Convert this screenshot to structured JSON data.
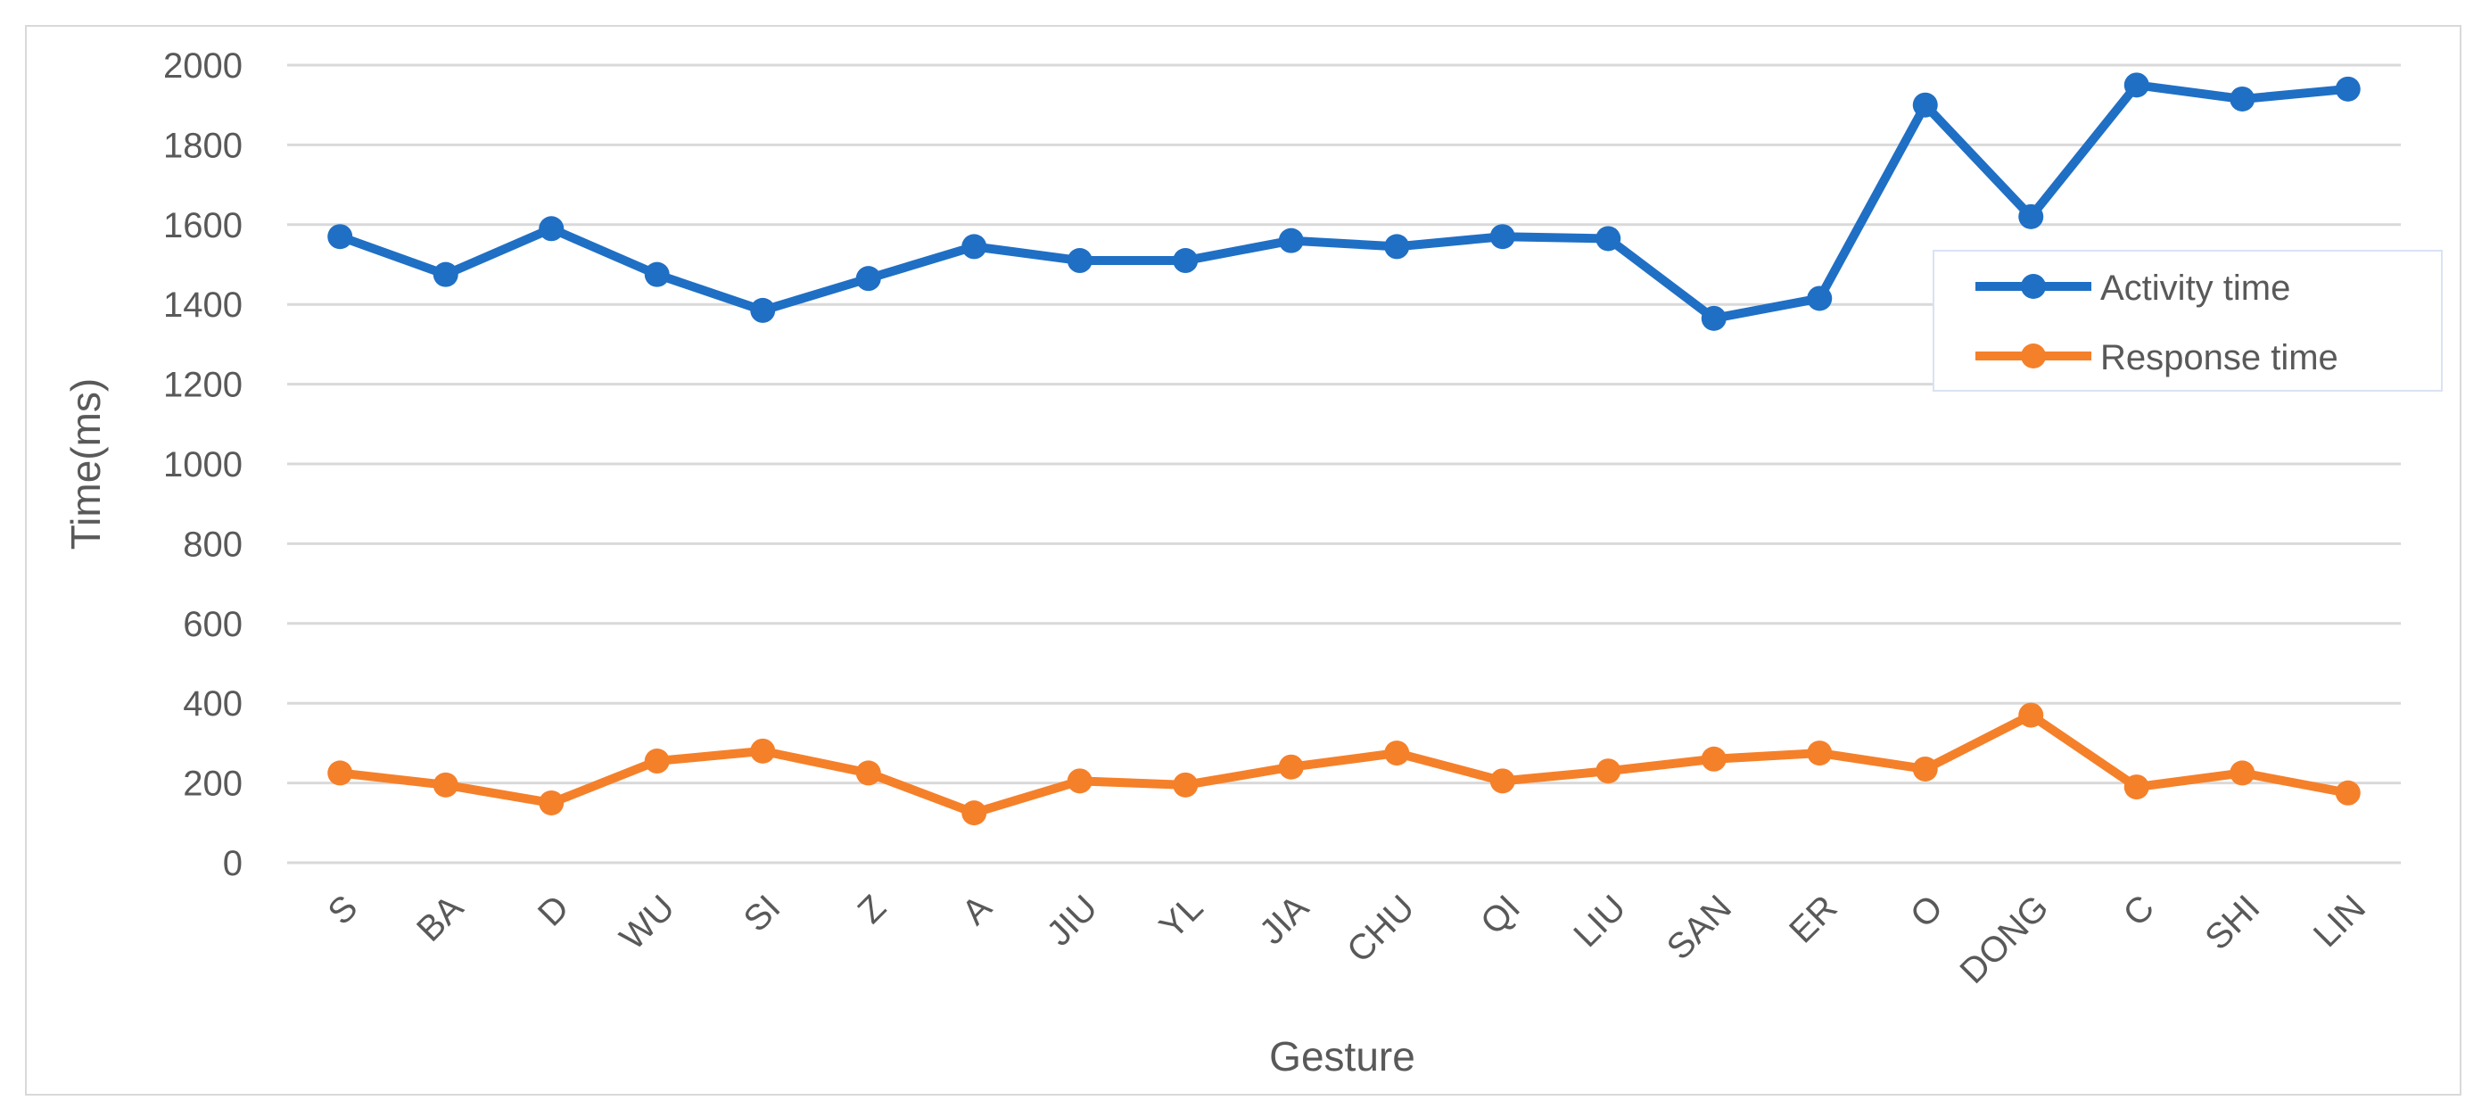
{
  "chart_data": {
    "type": "line",
    "title": "",
    "xlabel": "Gesture",
    "ylabel": "Time(ms)",
    "ylim": [
      0,
      2000
    ],
    "yticks": [
      0,
      200,
      400,
      600,
      800,
      1000,
      1200,
      1400,
      1600,
      1800,
      2000
    ],
    "grid": true,
    "legend_position": "right",
    "categories": [
      "S",
      "BA",
      "D",
      "WU",
      "SI",
      "Z",
      "A",
      "JIU",
      "YL",
      "JIA",
      "CHU",
      "QI",
      "LIU",
      "SAN",
      "ER",
      "O",
      "DONG",
      "C",
      "SHI",
      "LIN"
    ],
    "series": [
      {
        "name": "Activity time",
        "color": "#1f6fc5",
        "values": [
          1570,
          1475,
          1590,
          1475,
          1385,
          1465,
          1545,
          1510,
          1510,
          1560,
          1545,
          1570,
          1565,
          1365,
          1415,
          1900,
          1620,
          1950,
          1915,
          1940
        ]
      },
      {
        "name": "Response time",
        "color": "#f5802a",
        "values": [
          225,
          195,
          150,
          255,
          280,
          225,
          125,
          205,
          195,
          240,
          275,
          205,
          230,
          260,
          275,
          235,
          370,
          190,
          225,
          175
        ]
      }
    ]
  }
}
